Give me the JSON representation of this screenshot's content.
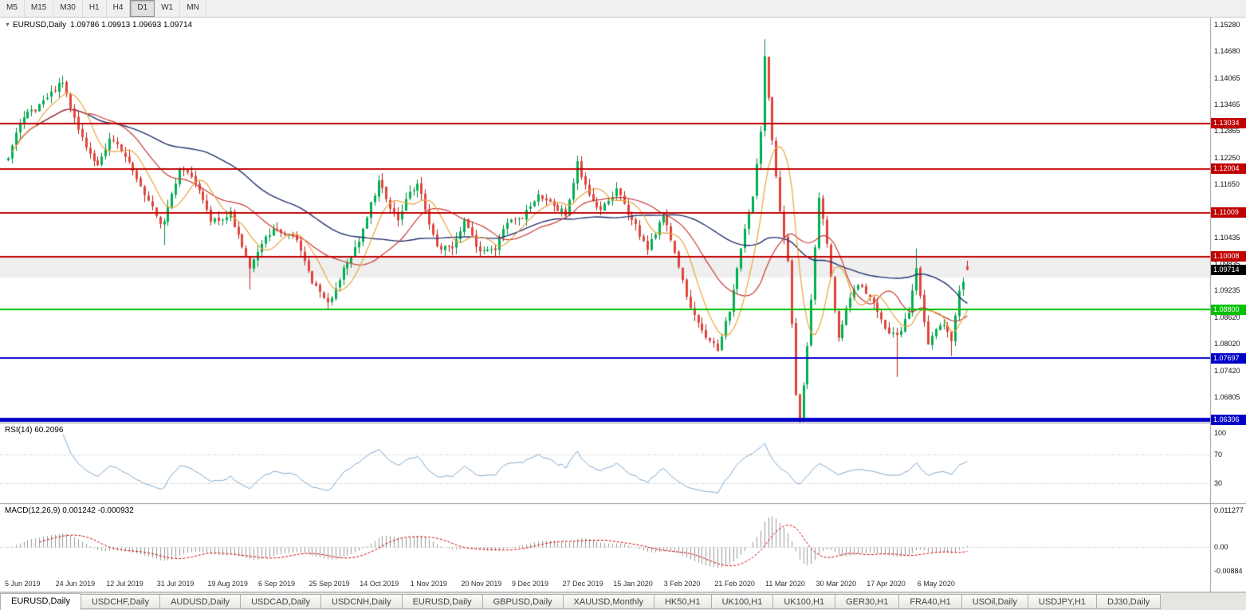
{
  "toolbar": {
    "timeframes": [
      "M5",
      "M15",
      "M30",
      "H1",
      "H4",
      "D1",
      "W1",
      "MN"
    ],
    "active": "D1"
  },
  "chart": {
    "dropdown_marker": "▼",
    "title_symbol": "EURUSD,Daily",
    "title_ohlc": "1.09786 1.09913 1.09693 1.09714",
    "price_axis_ticks": [
      "1.15280",
      "1.14680",
      "1.14065",
      "1.13465",
      "1.12865",
      "1.12250",
      "1.11650",
      "1.11035",
      "1.10435",
      "1.09835",
      "1.09235",
      "1.08620",
      "1.08020",
      "1.07420",
      "1.06805"
    ],
    "hlines": [
      {
        "label": "1.13034",
        "price": 1.13034,
        "color": "#C00000",
        "thickness": 2
      },
      {
        "label": "1.12004",
        "price": 1.12004,
        "color": "#C00000",
        "thickness": 2
      },
      {
        "label": "1.11009",
        "price": 1.11009,
        "color": "#C00000",
        "thickness": 2
      },
      {
        "label": "1.10008",
        "price": 1.10008,
        "color": "#C00000",
        "thickness": 2
      },
      {
        "label": "1.08800",
        "price": 1.088,
        "color": "#00C000",
        "thickness": 2
      },
      {
        "label": "1.07697",
        "price": 1.07697,
        "color": "#0000C8",
        "thickness": 2
      },
      {
        "label": "1.06306",
        "price": 1.06306,
        "color": "#0000C8",
        "thickness": 5
      }
    ],
    "current_price": {
      "label": "1.09714",
      "price": 1.09714,
      "badge_color": "#000000"
    },
    "band": {
      "from": 1.10008,
      "to": 1.0953,
      "color": "#EFEFEF"
    },
    "date_labels": [
      "5 Jun 2019",
      "24 Jun 2019",
      "12 Jul 2019",
      "31 Jul 2019",
      "19 Aug 2019",
      "6 Sep 2019",
      "25 Sep 2019",
      "14 Oct 2019",
      "1 Nov 2019",
      "20 Nov 2019",
      "9 Dec 2019",
      "27 Dec 2019",
      "15 Jan 2020",
      "3 Feb 2020",
      "21 Feb 2020",
      "11 Mar 2020",
      "30 Mar 2020",
      "17 Apr 2020",
      "6 May 2020"
    ],
    "colors": {
      "up": "#00B050",
      "up_border": "#008A3C",
      "down": "#E0443C",
      "down_border": "#B01F1A",
      "ma_fast": "#E8A33D",
      "ma_mid": "#C93836",
      "ma_slow": "#20306E"
    }
  },
  "chart_data": {
    "type": "candlestick",
    "symbol": "EURUSD",
    "timeframe": "Daily",
    "bars": 247,
    "last_ohlc": {
      "open": 1.09786,
      "high": 1.09913,
      "low": 1.09693,
      "close": 1.09714
    },
    "anchors": [
      [
        0,
        1.1222
      ],
      [
        3,
        1.131
      ],
      [
        8,
        1.1345
      ],
      [
        14,
        1.14
      ],
      [
        18,
        1.1285
      ],
      [
        23,
        1.1209
      ],
      [
        26,
        1.127
      ],
      [
        31,
        1.122
      ],
      [
        36,
        1.1128
      ],
      [
        39,
        1.1075
      ],
      [
        40,
        1.1085
      ],
      [
        44,
        1.12
      ],
      [
        48,
        1.117
      ],
      [
        52,
        1.1078
      ],
      [
        57,
        1.11
      ],
      [
        62,
        1.097
      ],
      [
        66,
        1.1045
      ],
      [
        69,
        1.1065
      ],
      [
        74,
        1.104
      ],
      [
        78,
        1.094
      ],
      [
        82,
        1.0895
      ],
      [
        86,
        1.097
      ],
      [
        90,
        1.104
      ],
      [
        95,
        1.117
      ],
      [
        100,
        1.108
      ],
      [
        103,
        1.115
      ],
      [
        105,
        1.1166
      ],
      [
        110,
        1.1018
      ],
      [
        114,
        1.102
      ],
      [
        117,
        1.1078
      ],
      [
        121,
        1.101
      ],
      [
        125,
        1.1018
      ],
      [
        128,
        1.1077
      ],
      [
        132,
        1.1093
      ],
      [
        136,
        1.1145
      ],
      [
        139,
        1.112
      ],
      [
        143,
        1.1098
      ],
      [
        146,
        1.1212
      ],
      [
        148,
        1.116
      ],
      [
        152,
        1.1105
      ],
      [
        156,
        1.115
      ],
      [
        160,
        1.1084
      ],
      [
        164,
        1.1019
      ],
      [
        168,
        1.1093
      ],
      [
        170,
        1.1043
      ],
      [
        174,
        1.091
      ],
      [
        178,
        1.083
      ],
      [
        182,
        1.0788
      ],
      [
        185,
        1.088
      ],
      [
        188,
        1.1026
      ],
      [
        191,
        1.1134
      ],
      [
        193,
        1.1285
      ],
      [
        194,
        1.145
      ],
      [
        196,
        1.127
      ],
      [
        198,
        1.1106
      ],
      [
        200,
        1.0995
      ],
      [
        202,
        1.0692
      ],
      [
        203,
        1.0637
      ],
      [
        205,
        1.079
      ],
      [
        208,
        1.114
      ],
      [
        210,
        1.103
      ],
      [
        213,
        1.081
      ],
      [
        215,
        1.089
      ],
      [
        218,
        1.0935
      ],
      [
        221,
        1.091
      ],
      [
        223,
        1.0875
      ],
      [
        226,
        1.0822
      ],
      [
        228,
        1.082
      ],
      [
        231,
        1.0875
      ],
      [
        233,
        1.098
      ],
      [
        236,
        1.0795
      ],
      [
        238,
        1.0838
      ],
      [
        240,
        1.0849
      ],
      [
        242,
        1.0805
      ],
      [
        244,
        1.0918
      ],
      [
        246,
        1.0971
      ]
    ],
    "wicks": [
      [
        14,
        "h",
        1.1412
      ],
      [
        40,
        "l",
        1.1027
      ],
      [
        62,
        "l",
        1.0926
      ],
      [
        82,
        "l",
        1.0879
      ],
      [
        194,
        "h",
        1.1495
      ],
      [
        203,
        "l",
        1.0636
      ],
      [
        208,
        "h",
        1.1147
      ],
      [
        228,
        "l",
        1.0727
      ],
      [
        233,
        "h",
        1.1019
      ],
      [
        242,
        "l",
        1.0775
      ]
    ]
  },
  "rsi": {
    "label": "RSI(14) 60.2096",
    "period": 14,
    "value": "60.2096",
    "levels": [
      "100",
      "70",
      "30"
    ],
    "color": "#7CA7CE"
  },
  "macd": {
    "label": "MACD(12,26,9) 0.001242 -0.000932",
    "axis_labels": [
      "0.011277",
      "0.00",
      "-0.00884"
    ],
    "histogram_color": "#999999",
    "signal_color": "#CC0000"
  },
  "tabs": [
    "EURUSD,Daily",
    "USDCHF,Daily",
    "AUDUSD,Daily",
    "USDCAD,Daily",
    "USDCNH,Daily",
    "EURUSD,Daily",
    "GBPUSD,Daily",
    "XAUUSD,Monthly",
    "HK50,H1",
    "UK100,H1",
    "UK100,H1",
    "GER30,H1",
    "FRA40,H1",
    "USOil,Daily",
    "USDJPY,H1",
    "DJ30,Daily"
  ],
  "active_tab_index": 0
}
